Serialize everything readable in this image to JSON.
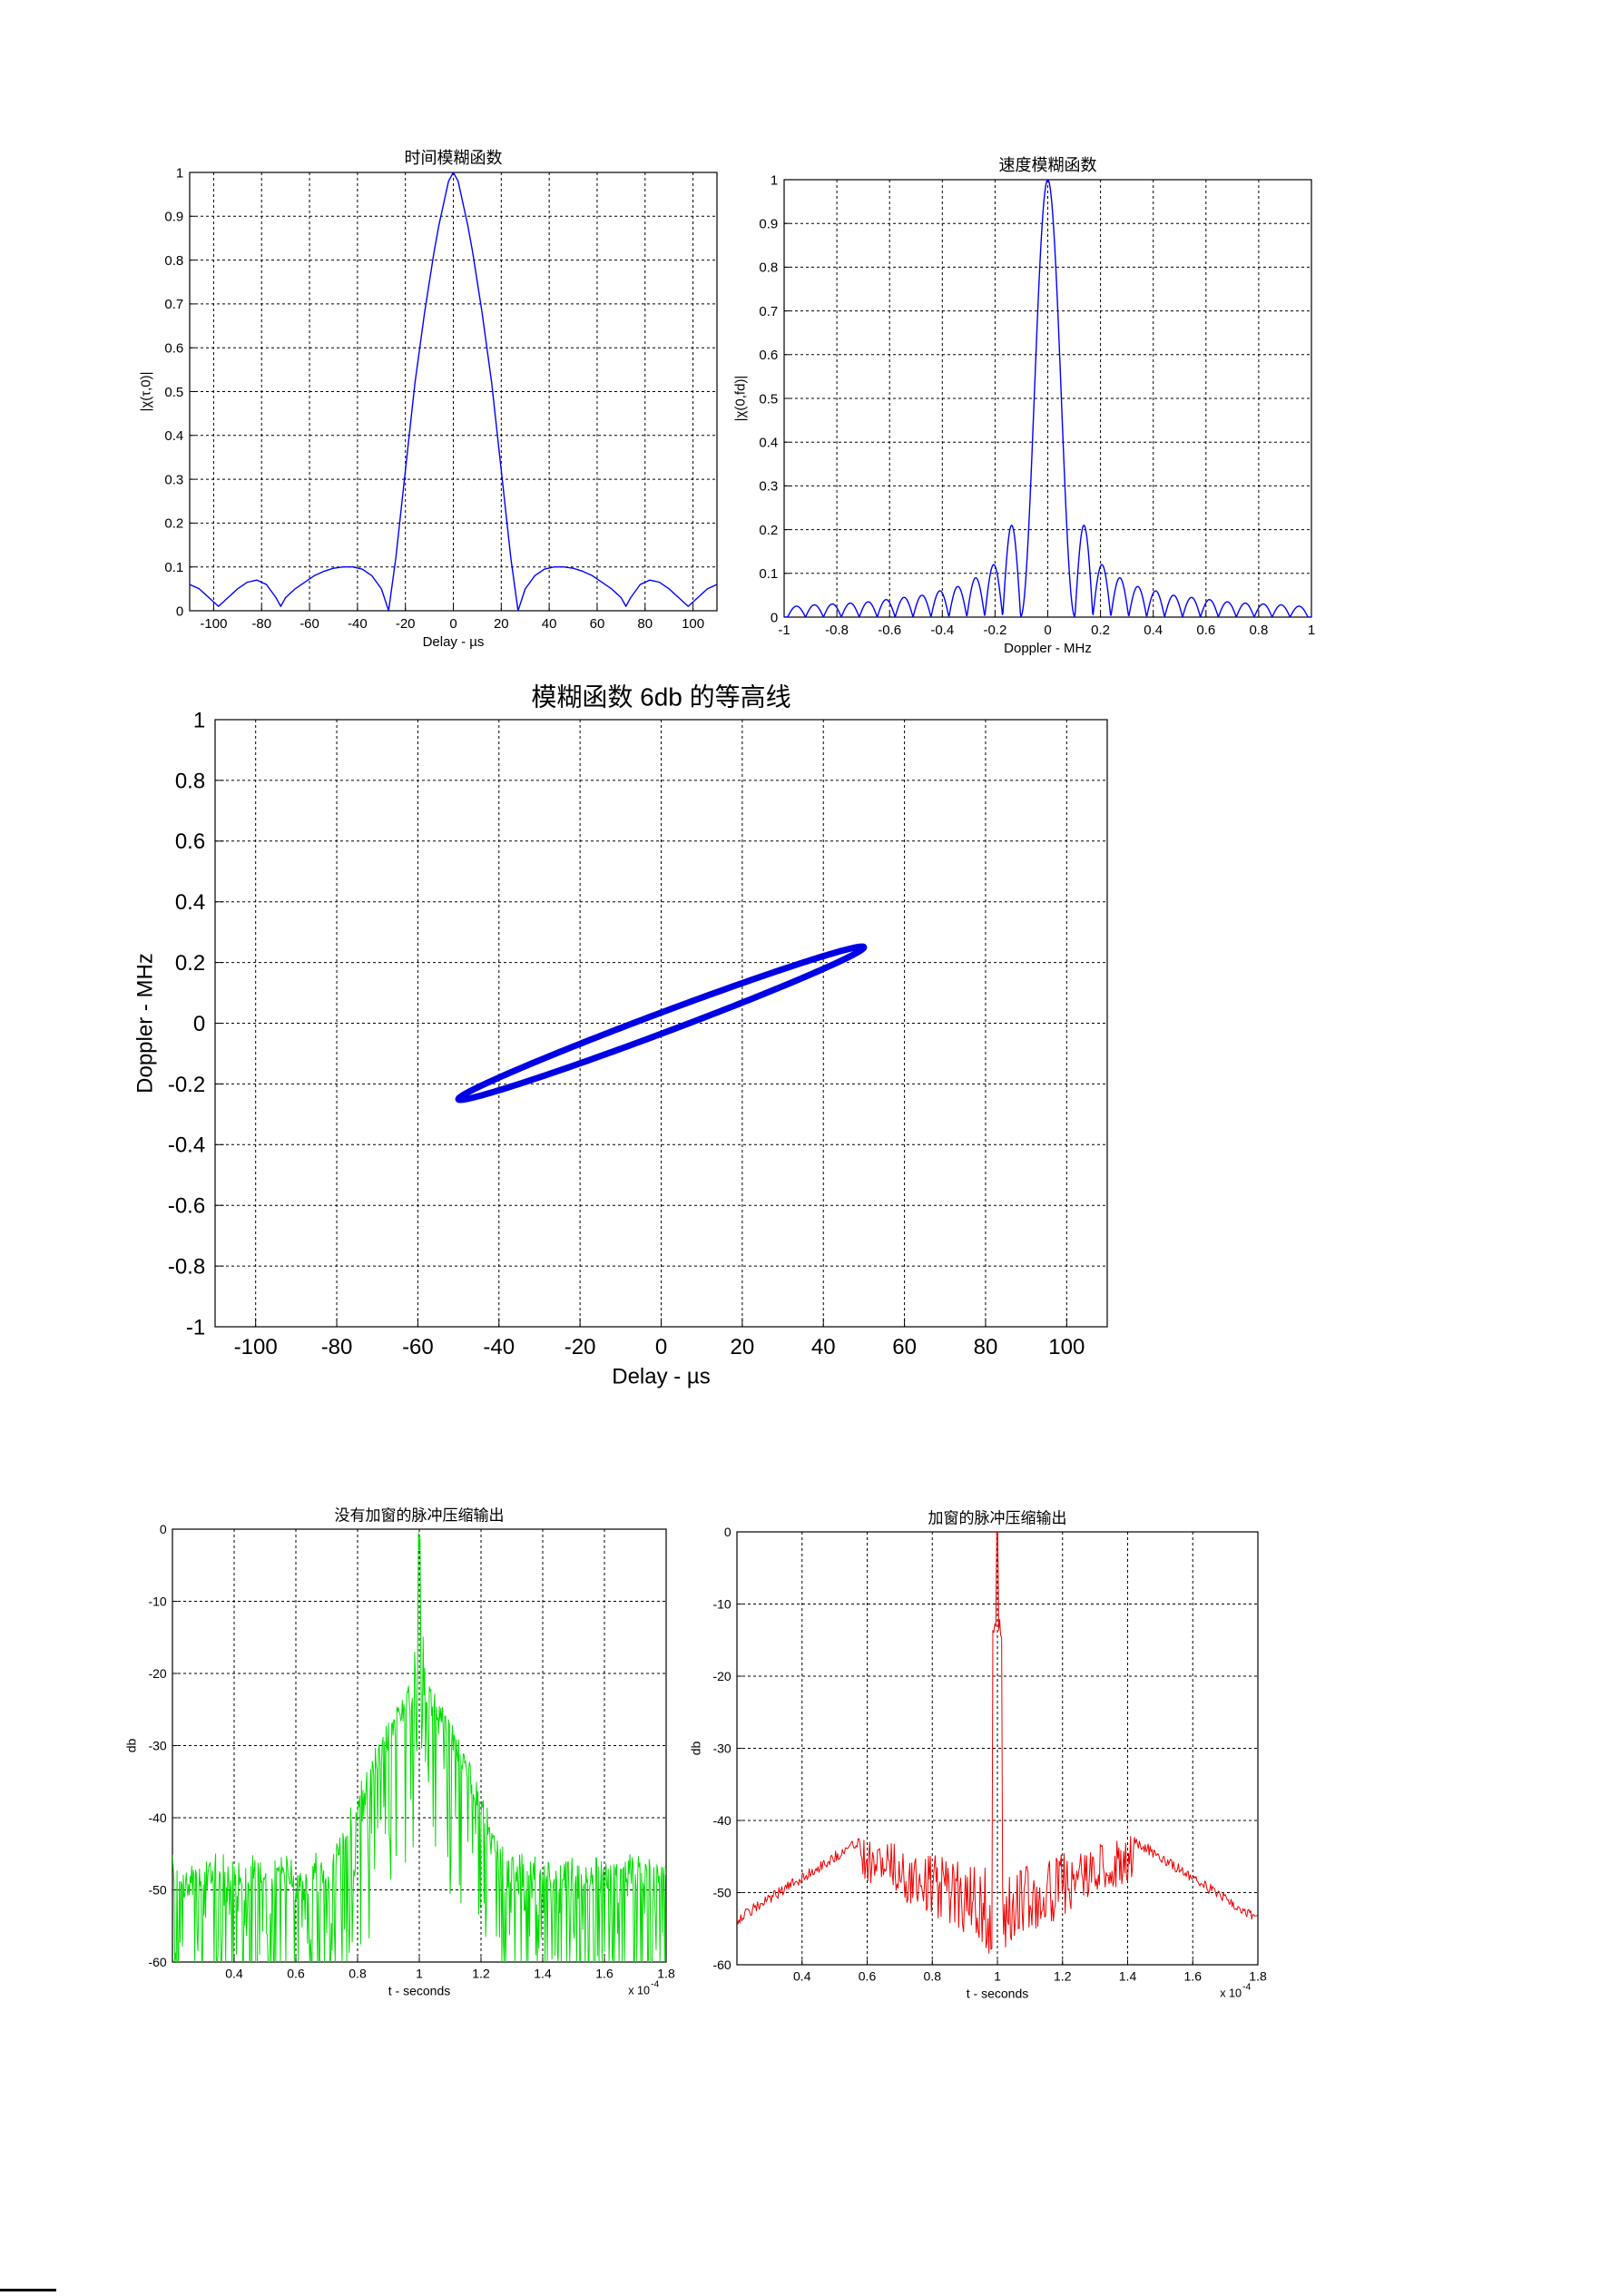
{
  "chart_data": [
    {
      "id": "time_ambiguity",
      "type": "line",
      "title": "时间模糊函数",
      "xlabel": "Delay - µs",
      "ylabel": "|χ(τ,0)|",
      "xlim": [
        -110,
        110
      ],
      "ylim": [
        0,
        1
      ],
      "xticks": [
        -100,
        -80,
        -60,
        -40,
        -20,
        0,
        20,
        40,
        60,
        80,
        100
      ],
      "yticks": [
        0,
        0.1,
        0.2,
        0.3,
        0.4,
        0.5,
        0.6,
        0.7,
        0.8,
        0.9,
        1
      ],
      "grid": true,
      "series": [
        {
          "color": "#0000ff",
          "x": [
            -110,
            -106,
            -102,
            -98,
            -94,
            -90,
            -86,
            -82,
            -78,
            -74,
            -72,
            -70,
            -66,
            -62,
            -58,
            -54,
            -50,
            -46,
            -42,
            -38,
            -34,
            -30,
            -27,
            -24,
            -22,
            -20,
            -18,
            -16,
            -14,
            -12,
            -10,
            -8,
            -6,
            -4,
            -2,
            0,
            2,
            4,
            6,
            8,
            10,
            12,
            14,
            16,
            18,
            20,
            22,
            24,
            27,
            30,
            34,
            38,
            42,
            46,
            50,
            54,
            58,
            62,
            66,
            70,
            72,
            74,
            78,
            82,
            86,
            90,
            94,
            98,
            102,
            106,
            110
          ],
          "y": [
            0.06,
            0.05,
            0.03,
            0.01,
            0.03,
            0.05,
            0.065,
            0.07,
            0.06,
            0.03,
            0.01,
            0.03,
            0.05,
            0.065,
            0.08,
            0.09,
            0.097,
            0.1,
            0.1,
            0.095,
            0.08,
            0.05,
            0.0,
            0.12,
            0.22,
            0.32,
            0.42,
            0.52,
            0.6,
            0.68,
            0.75,
            0.82,
            0.88,
            0.93,
            0.98,
            1.0,
            0.98,
            0.93,
            0.88,
            0.82,
            0.75,
            0.68,
            0.6,
            0.52,
            0.42,
            0.32,
            0.22,
            0.12,
            0.0,
            0.05,
            0.08,
            0.095,
            0.1,
            0.1,
            0.097,
            0.09,
            0.08,
            0.065,
            0.05,
            0.03,
            0.01,
            0.03,
            0.06,
            0.07,
            0.065,
            0.05,
            0.03,
            0.01,
            0.03,
            0.05,
            0.06
          ]
        }
      ]
    },
    {
      "id": "doppler_ambiguity",
      "type": "line",
      "title": "速度模糊函数",
      "xlabel": "Doppler - MHz",
      "ylabel": "|χ(0,fd)|",
      "xlim": [
        -1,
        1
      ],
      "ylim": [
        0,
        1
      ],
      "xticks": [
        -1,
        -0.8,
        -0.6,
        -0.4,
        -0.2,
        0,
        0.2,
        0.4,
        0.6,
        0.8,
        1
      ],
      "yticks": [
        0,
        0.1,
        0.2,
        0.3,
        0.4,
        0.5,
        0.6,
        0.7,
        0.8,
        0.9,
        1
      ],
      "grid": true,
      "sidelobes": [
        {
          "center": 0.137,
          "half_width": 0.034,
          "peak": 0.21
        },
        {
          "center": 0.205,
          "half_width": 0.034,
          "peak": 0.12
        },
        {
          "center": 0.273,
          "half_width": 0.034,
          "peak": 0.09
        },
        {
          "center": 0.341,
          "half_width": 0.034,
          "peak": 0.07
        },
        {
          "center": 0.409,
          "half_width": 0.034,
          "peak": 0.06
        },
        {
          "center": 0.477,
          "half_width": 0.034,
          "peak": 0.05
        },
        {
          "center": 0.545,
          "half_width": 0.034,
          "peak": 0.045
        },
        {
          "center": 0.613,
          "half_width": 0.034,
          "peak": 0.04
        },
        {
          "center": 0.681,
          "half_width": 0.034,
          "peak": 0.035
        },
        {
          "center": 0.749,
          "half_width": 0.034,
          "peak": 0.032
        },
        {
          "center": 0.817,
          "half_width": 0.034,
          "peak": 0.03
        },
        {
          "center": 0.885,
          "half_width": 0.034,
          "peak": 0.028
        },
        {
          "center": 0.953,
          "half_width": 0.034,
          "peak": 0.025
        }
      ],
      "mainlobe_halfwidth": 0.103,
      "series": [
        {
          "color": "#0000ff"
        }
      ]
    },
    {
      "id": "contour_6db",
      "type": "line",
      "title": "模糊函数 6db 的等高线",
      "xlabel": "Delay - µs",
      "ylabel": "Doppler - MHz",
      "xlim": [
        -110,
        110
      ],
      "ylim": [
        -1,
        1
      ],
      "xticks": [
        -100,
        -80,
        -60,
        -40,
        -20,
        0,
        20,
        40,
        60,
        80,
        100
      ],
      "yticks": [
        -1,
        -0.8,
        -0.6,
        -0.4,
        -0.2,
        0,
        0.2,
        0.4,
        0.6,
        0.8,
        1
      ],
      "grid": true,
      "contour": {
        "center": [
          0,
          0
        ],
        "end_point": [
          50,
          0.25
        ],
        "half_thickness": 0.035
      },
      "series": [
        {
          "color": "#0000e6"
        }
      ]
    },
    {
      "id": "compress_nowindow",
      "type": "line",
      "title": "没有加窗的脉冲压缩输出",
      "xlabel": "t - seconds",
      "ylabel": "db",
      "x_multiplier": "x 10",
      "x_exponent": "-4",
      "xlim": [
        0.2,
        1.8
      ],
      "ylim": [
        -60,
        0
      ],
      "xticks": [
        0.4,
        0.6,
        0.8,
        1,
        1.2,
        1.4,
        1.6,
        1.8
      ],
      "yticks": [
        -60,
        -50,
        -40,
        -30,
        -20,
        -10,
        0
      ],
      "grid": true,
      "series": [
        {
          "color": "#00dd00"
        }
      ]
    },
    {
      "id": "compress_window",
      "type": "line",
      "title": "加窗的脉冲压缩输出",
      "xlabel": "t - seconds",
      "ylabel": "db",
      "x_multiplier": "x 10",
      "x_exponent": "-4",
      "xlim": [
        0.2,
        1.8
      ],
      "ylim": [
        -60,
        0
      ],
      "xticks": [
        0.4,
        0.6,
        0.8,
        1,
        1.2,
        1.4,
        1.6,
        1.8
      ],
      "yticks": [
        -60,
        -50,
        -40,
        -30,
        -20,
        -10,
        0
      ],
      "grid": true,
      "series": [
        {
          "color": "#ee0000"
        }
      ]
    }
  ]
}
